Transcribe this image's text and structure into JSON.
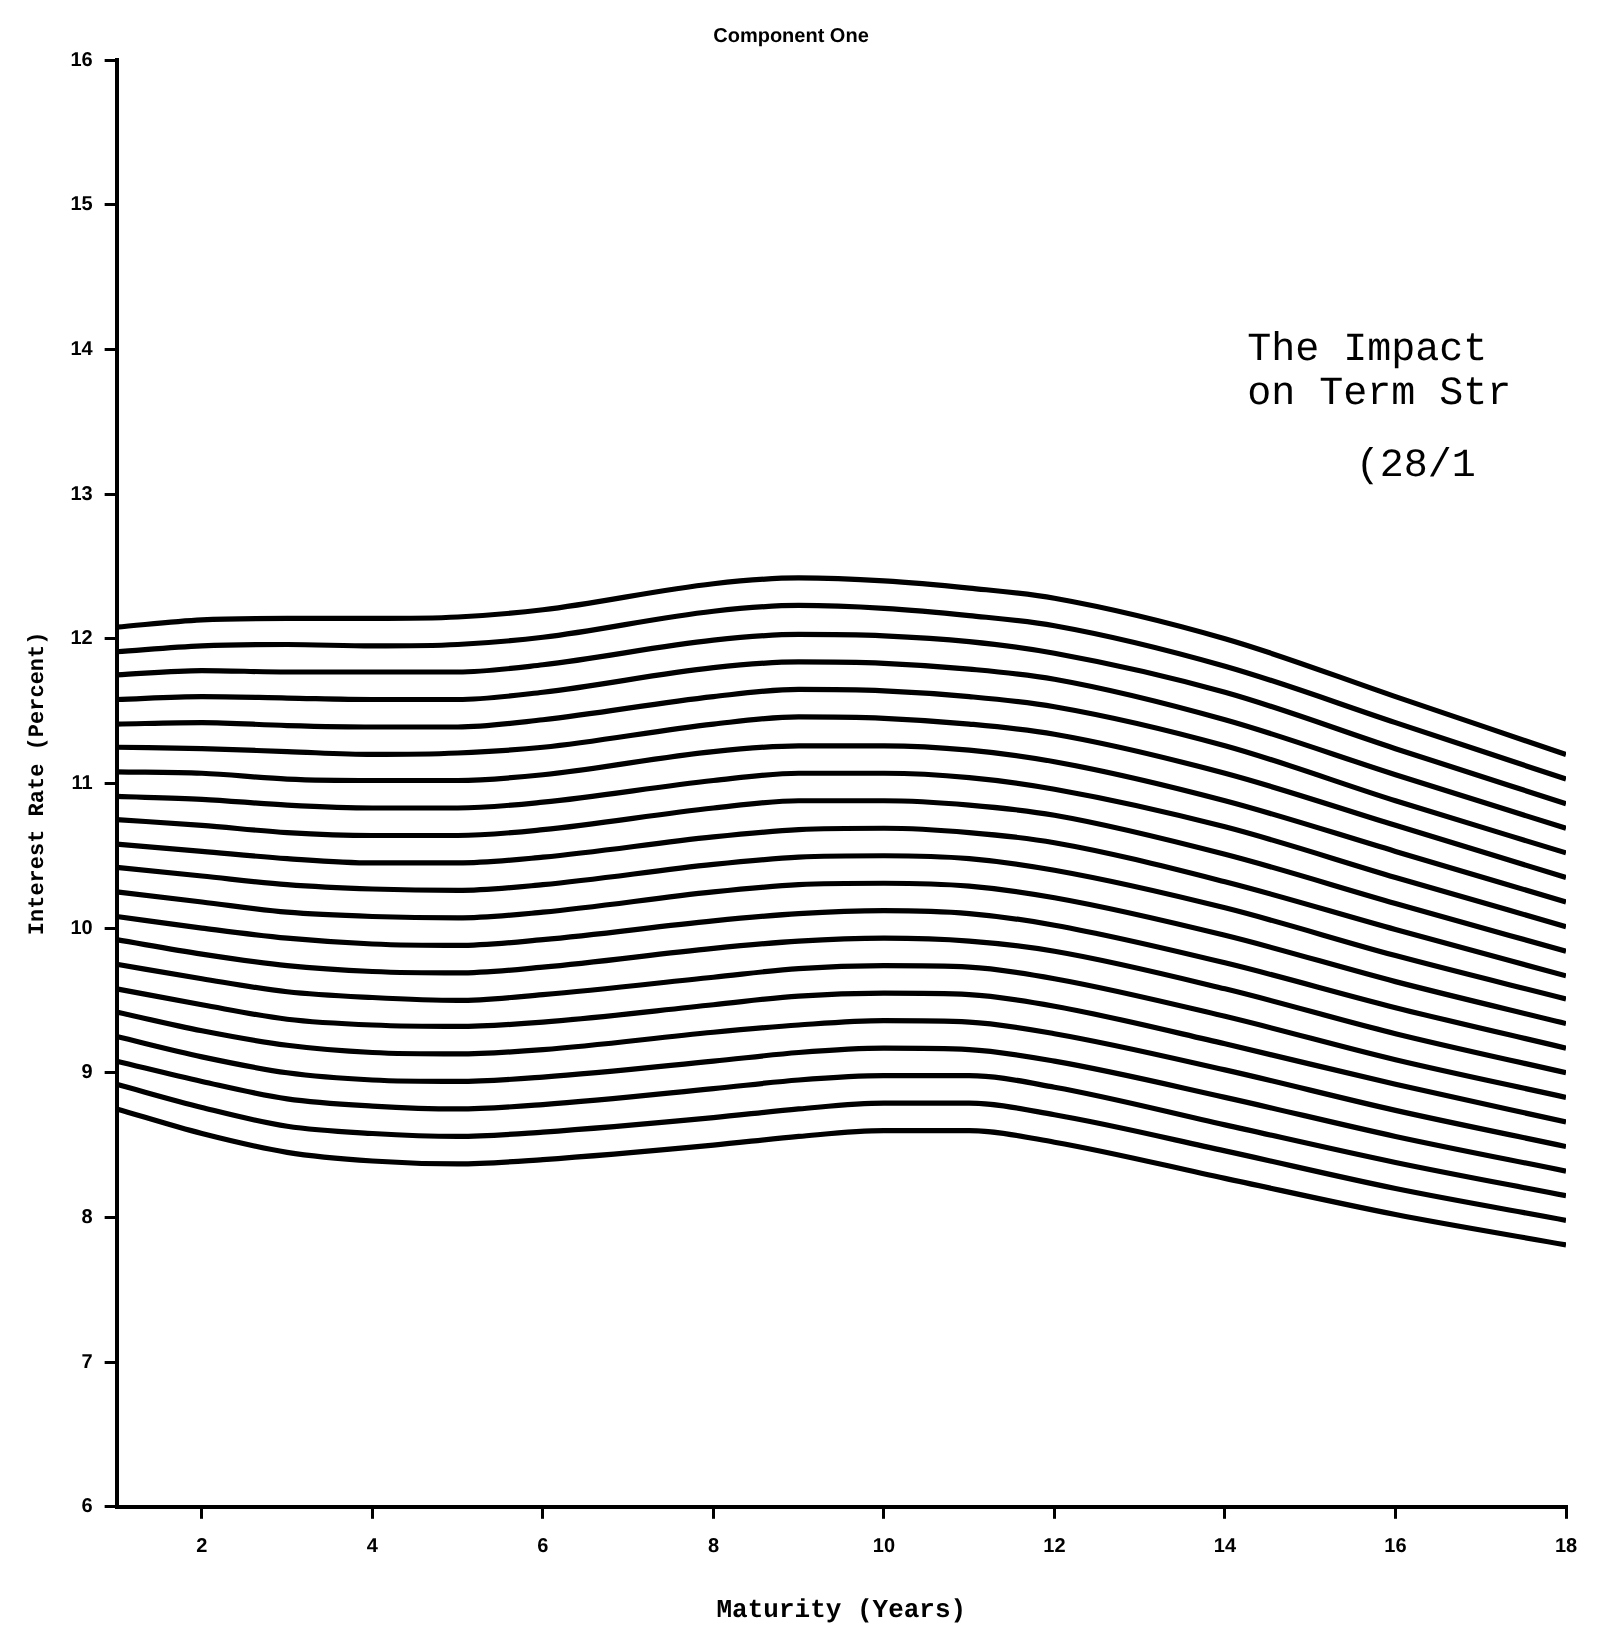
{
  "chart_data": {
    "type": "line",
    "title": "Component One",
    "xlabel": "Maturity (Years)",
    "ylabel": "Interest Rate (Percent)",
    "x": [
      1,
      2,
      3,
      4,
      5,
      6,
      8,
      9,
      10,
      11,
      12,
      14,
      16,
      18
    ],
    "xlim": [
      1,
      18
    ],
    "xticks": [
      2,
      4,
      6,
      8,
      10,
      12,
      14,
      16,
      18
    ],
    "ylim": [
      6,
      16
    ],
    "yticks": [
      6,
      7,
      8,
      9,
      10,
      11,
      12,
      13,
      14,
      15,
      16
    ],
    "grid": false,
    "legend": false,
    "marker": "none",
    "line_style": "solid",
    "annotations": [
      "The Impact",
      "on Term Str",
      "(28/1"
    ],
    "series": [
      {
        "color": "#000000",
        "values": [
          8.75,
          8.58,
          8.45,
          8.39,
          8.37,
          8.4,
          8.5,
          8.56,
          8.6,
          8.6,
          8.52,
          8.27,
          8.02,
          7.81
        ]
      },
      {
        "color": "#000000",
        "values": [
          8.92,
          8.76,
          8.63,
          8.58,
          8.56,
          8.59,
          8.69,
          8.75,
          8.79,
          8.79,
          8.71,
          8.46,
          8.2,
          7.98
        ]
      },
      {
        "color": "#000000",
        "values": [
          9.08,
          8.94,
          8.82,
          8.77,
          8.75,
          8.78,
          8.89,
          8.95,
          8.98,
          8.98,
          8.9,
          8.64,
          8.38,
          8.15
        ]
      },
      {
        "color": "#000000",
        "values": [
          9.25,
          9.11,
          9.0,
          8.95,
          8.94,
          8.97,
          9.08,
          9.14,
          9.17,
          9.16,
          9.08,
          8.83,
          8.56,
          8.32
        ]
      },
      {
        "color": "#000000",
        "values": [
          9.42,
          9.29,
          9.19,
          9.14,
          9.13,
          9.16,
          9.28,
          9.33,
          9.36,
          9.35,
          9.27,
          9.02,
          8.74,
          8.49
        ]
      },
      {
        "color": "#000000",
        "values": [
          9.58,
          9.47,
          9.37,
          9.33,
          9.32,
          9.35,
          9.47,
          9.53,
          9.55,
          9.54,
          9.46,
          9.2,
          8.92,
          8.66
        ]
      },
      {
        "color": "#000000",
        "values": [
          9.75,
          9.65,
          9.56,
          9.52,
          9.5,
          9.54,
          9.66,
          9.72,
          9.74,
          9.73,
          9.65,
          9.39,
          9.09,
          8.83
        ]
      },
      {
        "color": "#000000",
        "values": [
          9.92,
          9.82,
          9.74,
          9.7,
          9.69,
          9.73,
          9.86,
          9.91,
          9.93,
          9.91,
          9.84,
          9.58,
          9.27,
          9.0
        ]
      },
      {
        "color": "#000000",
        "values": [
          10.08,
          10.0,
          9.93,
          9.89,
          9.88,
          9.92,
          10.05,
          10.1,
          10.12,
          10.1,
          10.02,
          9.76,
          9.45,
          9.17
        ]
      },
      {
        "color": "#000000",
        "values": [
          10.25,
          10.18,
          10.11,
          10.08,
          10.07,
          10.11,
          10.25,
          10.3,
          10.31,
          10.29,
          10.21,
          9.95,
          9.63,
          9.34
        ]
      },
      {
        "color": "#000000",
        "values": [
          10.42,
          10.36,
          10.3,
          10.27,
          10.26,
          10.3,
          10.44,
          10.49,
          10.5,
          10.48,
          10.4,
          10.14,
          9.81,
          9.51
        ]
      },
      {
        "color": "#000000",
        "values": [
          10.58,
          10.53,
          10.48,
          10.45,
          10.45,
          10.49,
          10.63,
          10.68,
          10.69,
          10.66,
          10.59,
          10.32,
          9.99,
          9.67
        ]
      },
      {
        "color": "#000000",
        "values": [
          10.75,
          10.71,
          10.66,
          10.64,
          10.64,
          10.68,
          10.83,
          10.88,
          10.88,
          10.85,
          10.78,
          10.51,
          10.17,
          9.84
        ]
      },
      {
        "color": "#000000",
        "values": [
          10.91,
          10.89,
          10.85,
          10.83,
          10.83,
          10.87,
          11.02,
          11.07,
          11.07,
          11.04,
          10.96,
          10.7,
          10.35,
          10.01
        ]
      },
      {
        "color": "#000000",
        "values": [
          11.08,
          11.07,
          11.03,
          11.02,
          11.02,
          11.06,
          11.22,
          11.26,
          11.26,
          11.23,
          11.15,
          10.88,
          10.53,
          10.18
        ]
      },
      {
        "color": "#000000",
        "values": [
          11.25,
          11.24,
          11.22,
          11.2,
          11.21,
          11.25,
          11.41,
          11.46,
          11.45,
          11.41,
          11.34,
          11.07,
          10.71,
          10.35
        ]
      },
      {
        "color": "#000000",
        "values": [
          11.41,
          11.42,
          11.4,
          11.39,
          11.39,
          11.44,
          11.6,
          11.65,
          11.64,
          11.6,
          11.53,
          11.26,
          10.88,
          10.52
        ]
      },
      {
        "color": "#000000",
        "values": [
          11.58,
          11.6,
          11.59,
          11.58,
          11.58,
          11.63,
          11.8,
          11.84,
          11.83,
          11.79,
          11.72,
          11.44,
          11.06,
          10.69
        ]
      },
      {
        "color": "#000000",
        "values": [
          11.75,
          11.78,
          11.77,
          11.77,
          11.77,
          11.82,
          11.99,
          12.03,
          12.02,
          11.98,
          11.9,
          11.63,
          11.24,
          10.86
        ]
      },
      {
        "color": "#000000",
        "values": [
          11.91,
          11.95,
          11.96,
          11.95,
          11.96,
          12.01,
          12.19,
          12.23,
          12.21,
          12.16,
          12.09,
          11.81,
          11.42,
          11.03
        ]
      },
      {
        "color": "#000000",
        "values": [
          12.08,
          12.13,
          12.14,
          12.14,
          12.15,
          12.2,
          12.38,
          12.42,
          12.4,
          12.35,
          12.28,
          12.0,
          11.6,
          11.2
        ]
      }
    ]
  }
}
